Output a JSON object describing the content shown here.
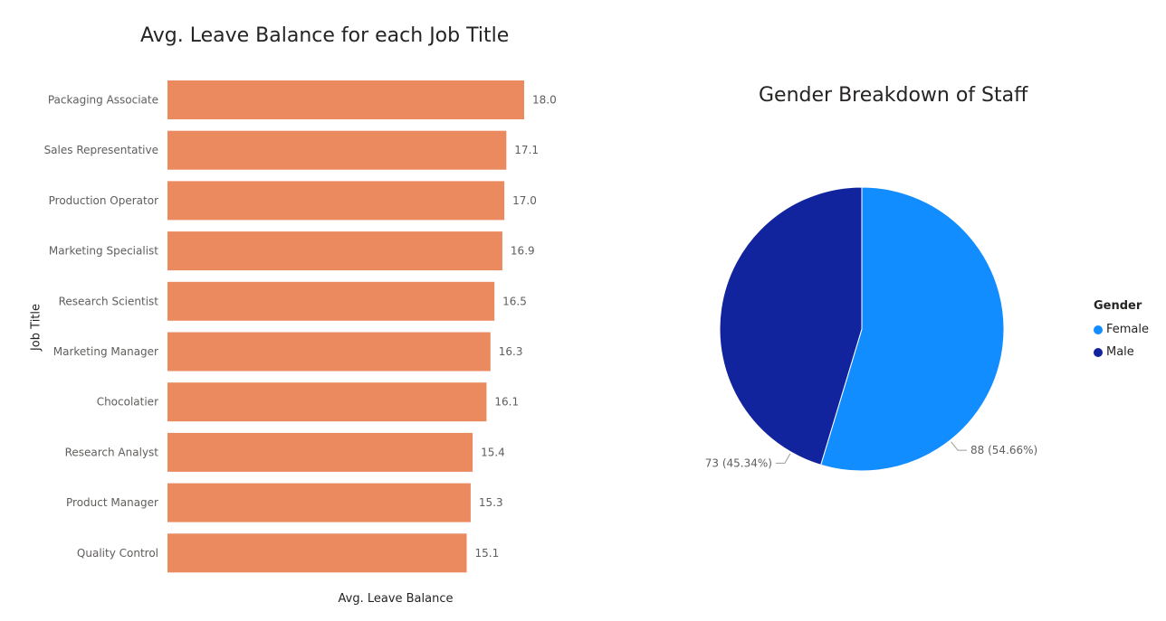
{
  "chart_data": [
    {
      "type": "bar",
      "orientation": "horizontal",
      "title": "Avg. Leave Balance for each Job Title",
      "xlabel": "Avg. Leave Balance",
      "ylabel": "Job Title",
      "xlim": [
        0,
        18.0
      ],
      "grid": false,
      "color": "#EB895F",
      "categories": [
        "Packaging Associate",
        "Sales Representative",
        "Production Operator",
        "Marketing Specialist",
        "Research Scientist",
        "Marketing Manager",
        "Chocolatier",
        "Research Analyst",
        "Product Manager",
        "Quality Control"
      ],
      "values": [
        18.0,
        17.1,
        17.0,
        16.9,
        16.5,
        16.3,
        16.1,
        15.4,
        15.3,
        15.1
      ],
      "data_labels": [
        "18.0",
        "17.1",
        "17.0",
        "16.9",
        "16.5",
        "16.3",
        "16.1",
        "15.4",
        "15.3",
        "15.1"
      ]
    },
    {
      "type": "pie",
      "title": "Gender Breakdown of Staff",
      "legend_title": "Gender",
      "legend_position": "right",
      "slices": [
        {
          "name": "Female",
          "value": 88,
          "label": "88 (54.66%)",
          "color": "#118DFF"
        },
        {
          "name": "Male",
          "value": 73,
          "label": "73 (45.34%)",
          "color": "#12239E"
        }
      ]
    }
  ]
}
